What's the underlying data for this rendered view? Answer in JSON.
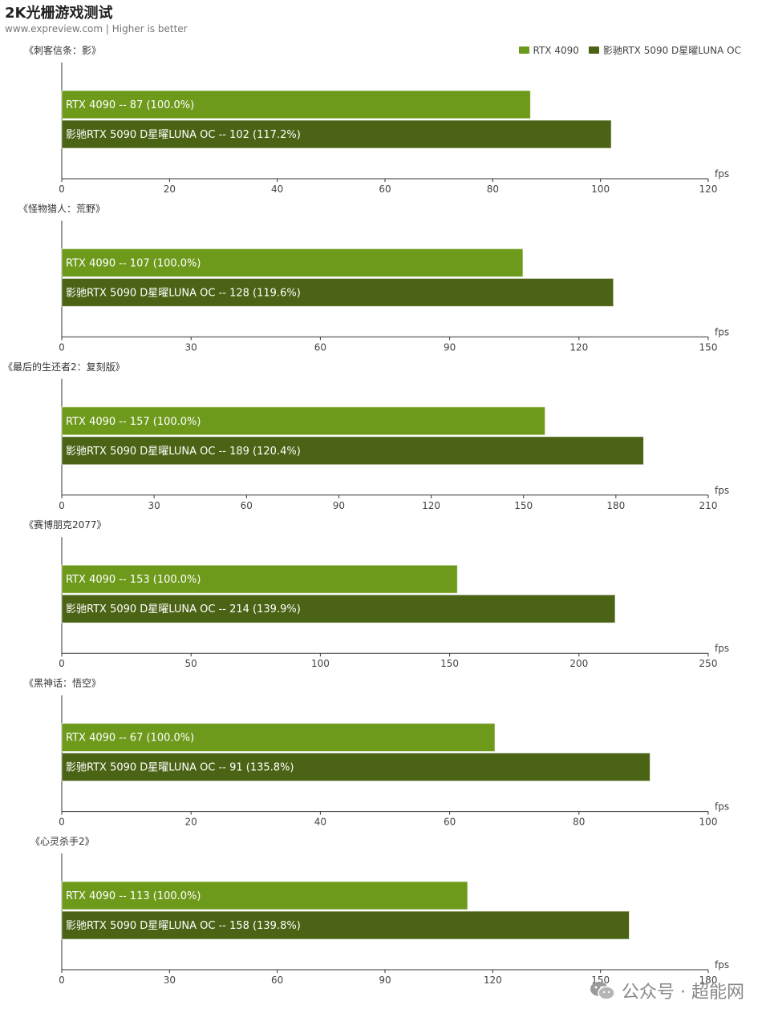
{
  "header": {
    "title": "2K光栅游戏测试",
    "subtitle": "www.expreview.com | Higher is better"
  },
  "legend": [
    {
      "name": "RTX 4090",
      "color": "#6e9a1c"
    },
    {
      "name": "影驰RTX 5090 D星曜LUNA OC",
      "color": "#4b6314"
    }
  ],
  "unit": "fps",
  "chart_data": [
    {
      "type": "bar",
      "title": "《刺客信条：影》",
      "xlim": [
        0,
        120
      ],
      "ticks": [
        0,
        20,
        40,
        60,
        80,
        100,
        120
      ],
      "series": [
        {
          "name": "RTX 4090",
          "values": [
            87
          ],
          "labels": [
            "RTX 4090 -- 87  (100.0%)"
          ]
        },
        {
          "name": "影驰RTX 5090 D星曜LUNA OC",
          "values": [
            102
          ],
          "labels": [
            "影驰RTX 5090 D星曜LUNA OC -- 102  (117.2%)"
          ]
        }
      ]
    },
    {
      "type": "bar",
      "title": "《怪物猎人：荒野》",
      "xlim": [
        0,
        150
      ],
      "ticks": [
        0,
        30,
        60,
        90,
        120,
        150
      ],
      "series": [
        {
          "name": "RTX 4090",
          "values": [
            107
          ],
          "labels": [
            "RTX 4090 -- 107  (100.0%)"
          ]
        },
        {
          "name": "影驰RTX 5090 D星曜LUNA OC",
          "values": [
            128
          ],
          "labels": [
            "影驰RTX 5090 D星曜LUNA OC -- 128  (119.6%)"
          ]
        }
      ]
    },
    {
      "type": "bar",
      "title": "《最后的生还者2：复刻版》",
      "xlim": [
        0,
        210
      ],
      "ticks": [
        0,
        30,
        60,
        90,
        120,
        150,
        180,
        210
      ],
      "series": [
        {
          "name": "RTX 4090",
          "values": [
            157
          ],
          "labels": [
            "RTX 4090 -- 157  (100.0%)"
          ]
        },
        {
          "name": "影驰RTX 5090 D星曜LUNA OC",
          "values": [
            189
          ],
          "labels": [
            "影驰RTX 5090 D星曜LUNA OC -- 189  (120.4%)"
          ]
        }
      ]
    },
    {
      "type": "bar",
      "title": "《赛博朋克2077》",
      "xlim": [
        0,
        250
      ],
      "ticks": [
        0,
        50,
        100,
        150,
        200,
        250
      ],
      "series": [
        {
          "name": "RTX 4090",
          "values": [
            153
          ],
          "labels": [
            "RTX 4090 -- 153  (100.0%)"
          ]
        },
        {
          "name": "影驰RTX 5090 D星曜LUNA OC",
          "values": [
            214
          ],
          "labels": [
            "影驰RTX 5090 D星曜LUNA OC -- 214  (139.9%)"
          ]
        }
      ]
    },
    {
      "type": "bar",
      "title": "《黑神话：悟空》",
      "xlim": [
        0,
        100
      ],
      "ticks": [
        0,
        20,
        40,
        60,
        80,
        100
      ],
      "series": [
        {
          "name": "RTX 4090",
          "values": [
            67
          ],
          "labels": [
            "RTX 4090 -- 67  (100.0%)"
          ]
        },
        {
          "name": "影驰RTX 5090 D星曜LUNA OC",
          "values": [
            91
          ],
          "labels": [
            "影驰RTX 5090 D星曜LUNA OC -- 91  (135.8%)"
          ]
        }
      ]
    },
    {
      "type": "bar",
      "title": "《心灵杀手2》",
      "xlim": [
        0,
        180
      ],
      "ticks": [
        0,
        30,
        60,
        90,
        120,
        150,
        180
      ],
      "series": [
        {
          "name": "RTX 4090",
          "values": [
            113
          ],
          "labels": [
            "RTX 4090 -- 113  (100.0%)"
          ]
        },
        {
          "name": "影驰RTX 5090 D星曜LUNA OC",
          "values": [
            158
          ],
          "labels": [
            "影驰RTX 5090 D星曜LUNA OC -- 158  (139.8%)"
          ]
        }
      ]
    }
  ],
  "watermark": {
    "text": "公众号 · 超能网",
    "icon": "wechat-icon"
  }
}
